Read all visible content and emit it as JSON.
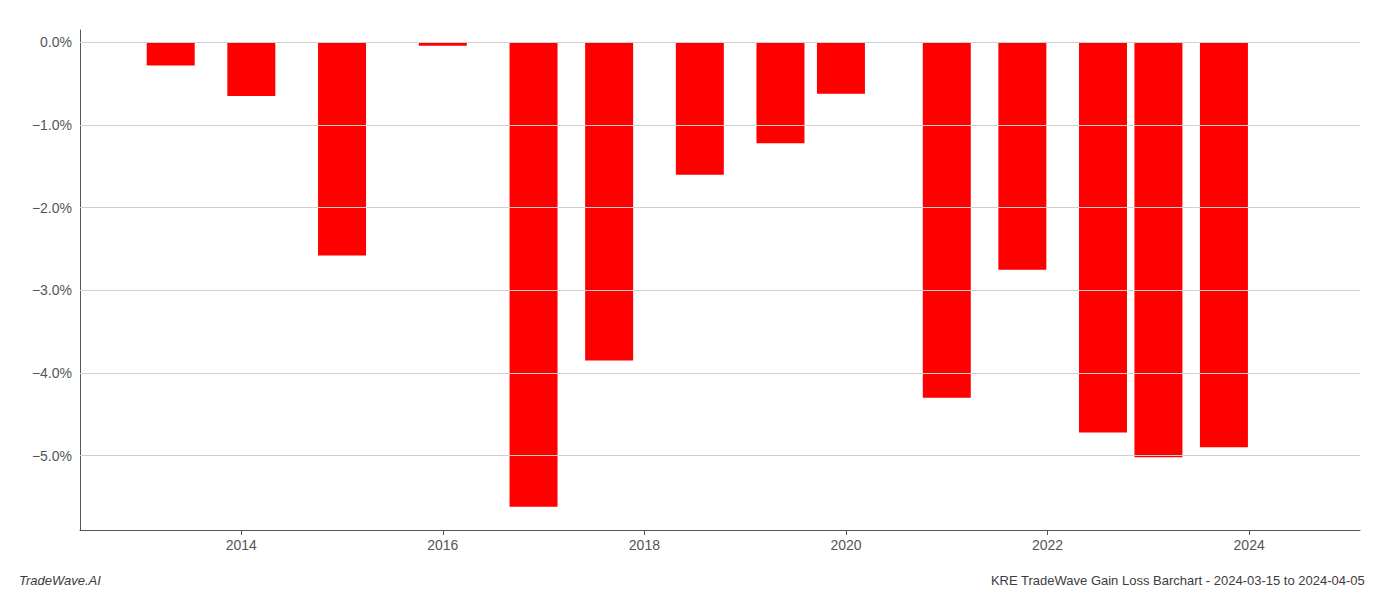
{
  "chart_data": {
    "type": "bar",
    "title": "KRE TradeWave Gain Loss Barchart - 2024-03-15 to 2024-04-05",
    "annotations": [
      "TradeWave.AI"
    ],
    "x": [
      2013.3,
      2014.1,
      2015.0,
      2016.0,
      2016.9,
      2017.65,
      2018.55,
      2019.35,
      2019.95,
      2021.0,
      2021.75,
      2022.55,
      2023.1,
      2023.75
    ],
    "values": [
      -0.28,
      -0.65,
      -2.58,
      -0.04,
      -5.62,
      -3.85,
      -1.6,
      -1.22,
      -0.62,
      -4.3,
      -2.75,
      -4.72,
      -5.02,
      -4.9
    ],
    "color": "#ff0000",
    "xlim": [
      2012.4,
      2025.1
    ],
    "xticks": [
      2014,
      2016,
      2018,
      2020,
      2022,
      2024
    ],
    "ylim": [
      -5.9,
      0.15
    ],
    "yticks": [
      {
        "value": 0.0,
        "label": "0.0%"
      },
      {
        "value": -1.0,
        "label": "−1.0%"
      },
      {
        "value": -2.0,
        "label": "−2.0%"
      },
      {
        "value": -3.0,
        "label": "−3.0%"
      },
      {
        "value": -4.0,
        "label": "−4.0%"
      },
      {
        "value": -5.0,
        "label": "−5.0%"
      }
    ],
    "grid": true
  }
}
